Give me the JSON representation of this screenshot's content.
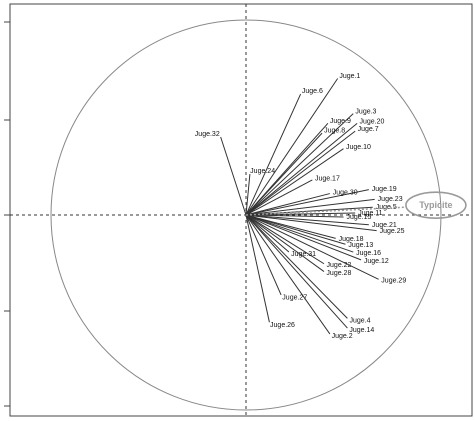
{
  "chart_data": {
    "type": "scatter",
    "title": "",
    "xlabel": "",
    "ylabel": "",
    "xlim": [
      -1.05,
      1.05
    ],
    "ylim": [
      -1.05,
      1.05
    ],
    "grid": false,
    "unit_circle": true,
    "dashed_axes_at_zero": true,
    "line_color": "#333333",
    "circle_color": "#888888",
    "highlight_color": "#9a9a9a",
    "vectors": [
      {
        "label": "Juge.1",
        "x": 0.47,
        "y": 0.7
      },
      {
        "label": "Juge.6",
        "x": 0.28,
        "y": 0.62
      },
      {
        "label": "Juge.3",
        "x": 0.55,
        "y": 0.52
      },
      {
        "label": "Juge.9",
        "x": 0.42,
        "y": 0.47
      },
      {
        "label": "Juge.20",
        "x": 0.57,
        "y": 0.47
      },
      {
        "label": "Juge.8",
        "x": 0.39,
        "y": 0.42
      },
      {
        "label": "Juge.7",
        "x": 0.56,
        "y": 0.43
      },
      {
        "label": "Juge.10",
        "x": 0.5,
        "y": 0.34
      },
      {
        "label": "Juge.32",
        "x": -0.13,
        "y": 0.4
      },
      {
        "label": "Juge.24",
        "x": 0.02,
        "y": 0.21
      },
      {
        "label": "Juge.17",
        "x": 0.34,
        "y": 0.18
      },
      {
        "label": "Juge.30",
        "x": 0.43,
        "y": 0.11
      },
      {
        "label": "Juge.19",
        "x": 0.63,
        "y": 0.13
      },
      {
        "label": "Juge.23",
        "x": 0.66,
        "y": 0.08
      },
      {
        "label": "Juge.5",
        "x": 0.65,
        "y": 0.04
      },
      {
        "label": "Juge.11",
        "x": 0.56,
        "y": 0.01
      },
      {
        "label": "Juge.15",
        "x": 0.5,
        "y": -0.01
      },
      {
        "label": "Juge.21",
        "x": 0.63,
        "y": -0.05
      },
      {
        "label": "Juge.25",
        "x": 0.67,
        "y": -0.08
      },
      {
        "label": "Juge.18",
        "x": 0.46,
        "y": -0.12
      },
      {
        "label": "Juge.13",
        "x": 0.51,
        "y": -0.15
      },
      {
        "label": "Juge.16",
        "x": 0.55,
        "y": -0.19
      },
      {
        "label": "Juge.12",
        "x": 0.59,
        "y": -0.23
      },
      {
        "label": "Juge.31",
        "x": 0.22,
        "y": -0.19
      },
      {
        "label": "Juge.22",
        "x": 0.4,
        "y": -0.25
      },
      {
        "label": "Juge.28",
        "x": 0.4,
        "y": -0.29
      },
      {
        "label": "Juge.29",
        "x": 0.68,
        "y": -0.33
      },
      {
        "label": "Juge.27",
        "x": 0.18,
        "y": -0.41
      },
      {
        "label": "Juge.26",
        "x": 0.12,
        "y": -0.55
      },
      {
        "label": "Juge.4",
        "x": 0.52,
        "y": -0.53
      },
      {
        "label": "Juge.2",
        "x": 0.43,
        "y": -0.61
      },
      {
        "label": "Juge.14",
        "x": 0.52,
        "y": -0.58
      }
    ],
    "highlight": {
      "label": "Typicite",
      "x": 0.82,
      "y": 0.04
    }
  }
}
